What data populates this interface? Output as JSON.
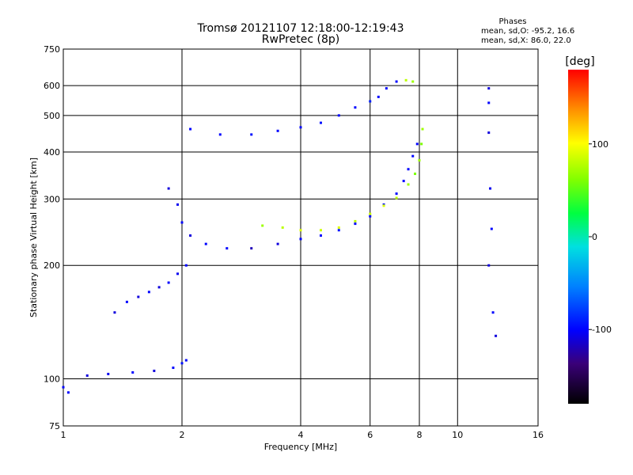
{
  "chart_data": {
    "type": "scatter",
    "title": "Tromsø 20121107 12:18:00-12:19:43",
    "subtitle": "RwPretec (8p)",
    "xlabel": "Frequency [MHz]",
    "ylabel": "Stationary phase Virtual Height [km]",
    "x_scale": "log",
    "y_scale": "log",
    "xlim": [
      1,
      16
    ],
    "ylim": [
      75,
      750
    ],
    "x_ticks": [
      "1",
      "2",
      "4",
      "6",
      "8",
      "10",
      "16"
    ],
    "x_tick_values": [
      1,
      2,
      4,
      6,
      8,
      10,
      16
    ],
    "y_ticks": [
      "75",
      "100",
      "200",
      "300",
      "400",
      "500",
      "600",
      "750"
    ],
    "y_tick_values": [
      75,
      100,
      200,
      300,
      400,
      500,
      600,
      750
    ],
    "grid": true,
    "colorbar": {
      "label": "[deg]",
      "range": [
        -180,
        180
      ],
      "ticks": [
        "100",
        "0",
        "-100"
      ],
      "tick_values": [
        100,
        0,
        -100
      ]
    },
    "stats": {
      "heading": "Phases",
      "line1": "mean, sd,O: -95.2, 16.6",
      "line2": "mean, sd,X:  86.0, 22.0"
    },
    "series": [
      {
        "points": [
          [
            1.0,
            95,
            -100
          ],
          [
            1.03,
            92,
            -100
          ],
          [
            1.15,
            102,
            -110
          ],
          [
            1.3,
            103,
            -105
          ],
          [
            1.5,
            104,
            -100
          ],
          [
            1.7,
            105,
            -110
          ],
          [
            1.9,
            107,
            -100
          ],
          [
            2.0,
            110,
            -95
          ],
          [
            2.05,
            112,
            -100
          ]
        ]
      },
      {
        "points": [
          [
            1.35,
            150,
            -110
          ],
          [
            1.45,
            160,
            -100
          ],
          [
            1.55,
            165,
            -110
          ],
          [
            1.65,
            170,
            -100
          ],
          [
            1.75,
            175,
            -110
          ],
          [
            1.85,
            180,
            -100
          ],
          [
            1.95,
            190,
            -105
          ],
          [
            2.05,
            200,
            -100
          ]
        ]
      },
      {
        "points": [
          [
            1.85,
            320,
            -110
          ],
          [
            1.95,
            290,
            -105
          ],
          [
            2.0,
            260,
            -100
          ],
          [
            2.1,
            240,
            -110
          ],
          [
            2.3,
            228,
            -100
          ],
          [
            2.6,
            222,
            -100
          ],
          [
            3.0,
            222,
            -120
          ],
          [
            3.5,
            228,
            -110
          ],
          [
            4.0,
            235,
            -100
          ],
          [
            4.5,
            240,
            -100
          ],
          [
            5.0,
            248,
            -95
          ],
          [
            5.5,
            258,
            -100
          ],
          [
            6.0,
            270,
            -100
          ],
          [
            6.5,
            290,
            -95
          ],
          [
            7.0,
            310,
            -100
          ],
          [
            7.3,
            335,
            -100
          ],
          [
            7.5,
            360,
            -100
          ],
          [
            7.7,
            390,
            -100
          ],
          [
            7.9,
            420,
            -100
          ]
        ]
      },
      {
        "points": [
          [
            3.2,
            255,
            70
          ],
          [
            3.6,
            252,
            80
          ],
          [
            4.0,
            248,
            90
          ],
          [
            4.5,
            248,
            85
          ],
          [
            5.0,
            252,
            90
          ],
          [
            5.5,
            262,
            80
          ],
          [
            6.0,
            274,
            85
          ],
          [
            6.5,
            288,
            90
          ],
          [
            7.0,
            302,
            80
          ],
          [
            7.5,
            328,
            70
          ],
          [
            7.8,
            350,
            60
          ],
          [
            8.0,
            380,
            70
          ],
          [
            8.1,
            420,
            60
          ],
          [
            8.15,
            460,
            70
          ]
        ]
      },
      {
        "points": [
          [
            2.1,
            460,
            -100
          ],
          [
            2.5,
            445,
            -100
          ],
          [
            3.0,
            445,
            -95
          ],
          [
            3.5,
            455,
            -100
          ],
          [
            4.0,
            465,
            -100
          ],
          [
            4.5,
            478,
            -95
          ],
          [
            5.0,
            500,
            -100
          ],
          [
            5.5,
            525,
            -100
          ],
          [
            6.0,
            545,
            -90
          ]
        ]
      },
      {
        "points": [
          [
            6.3,
            560,
            -100
          ],
          [
            6.6,
            590,
            -100
          ],
          [
            7.0,
            615,
            -100
          ],
          [
            7.4,
            620,
            80
          ],
          [
            7.7,
            615,
            70
          ]
        ]
      },
      {
        "points": [
          [
            12.0,
            590,
            -110
          ],
          [
            12.0,
            540,
            -100
          ],
          [
            12.0,
            450,
            -110
          ],
          [
            12.1,
            320,
            -105
          ],
          [
            12.2,
            250,
            -100
          ],
          [
            12.0,
            200,
            -110
          ],
          [
            12.3,
            150,
            -100
          ],
          [
            12.5,
            130,
            -110
          ]
        ]
      }
    ]
  }
}
